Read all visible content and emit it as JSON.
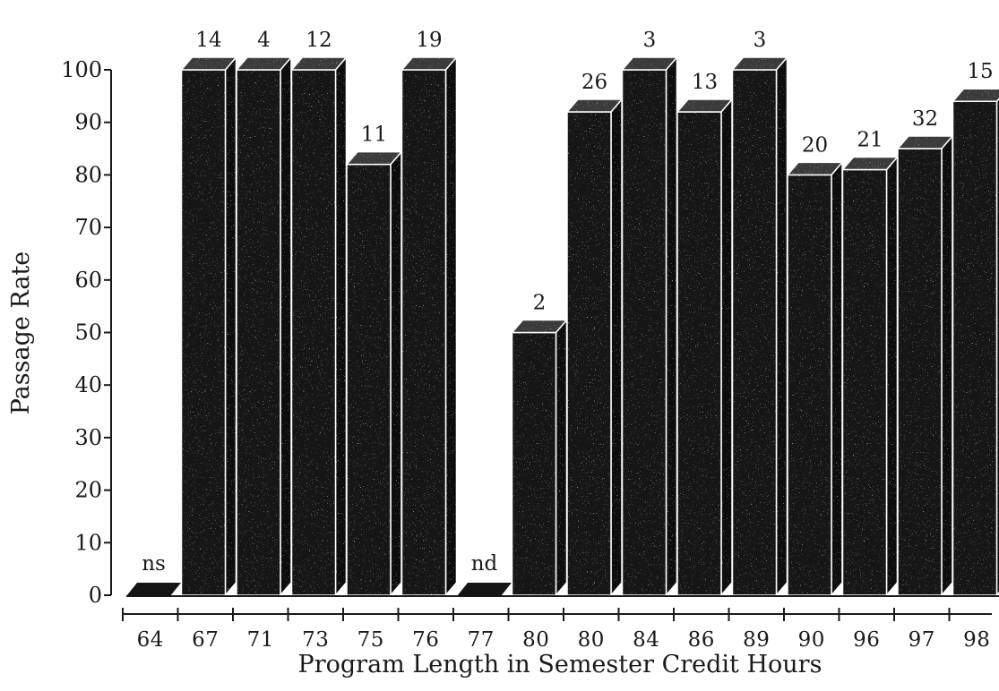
{
  "chart_data": {
    "type": "bar",
    "title": "",
    "xlabel": "Program Length in Semester Credit Hours",
    "ylabel": "Passage Rate",
    "ylim": [
      0,
      100
    ],
    "yticks": [
      "0",
      "10",
      "20",
      "30",
      "40",
      "50",
      "60",
      "70",
      "80",
      "90",
      "100"
    ],
    "grid": false,
    "style": "3d-bars",
    "bar_color": "#151515",
    "categories": [
      "64",
      "67",
      "71",
      "73",
      "75",
      "76",
      "77",
      "80",
      "80",
      "84",
      "86",
      "89",
      "90",
      "96",
      "97",
      "98"
    ],
    "values": [
      0,
      100,
      100,
      100,
      82,
      100,
      0,
      50,
      92,
      100,
      92,
      100,
      80,
      81,
      85,
      94
    ],
    "bar_labels": [
      "ns",
      "14",
      "4",
      "12",
      "11",
      "19",
      "nd",
      "2",
      "26",
      "3",
      "13",
      "3",
      "20",
      "21",
      "32",
      "15"
    ]
  }
}
